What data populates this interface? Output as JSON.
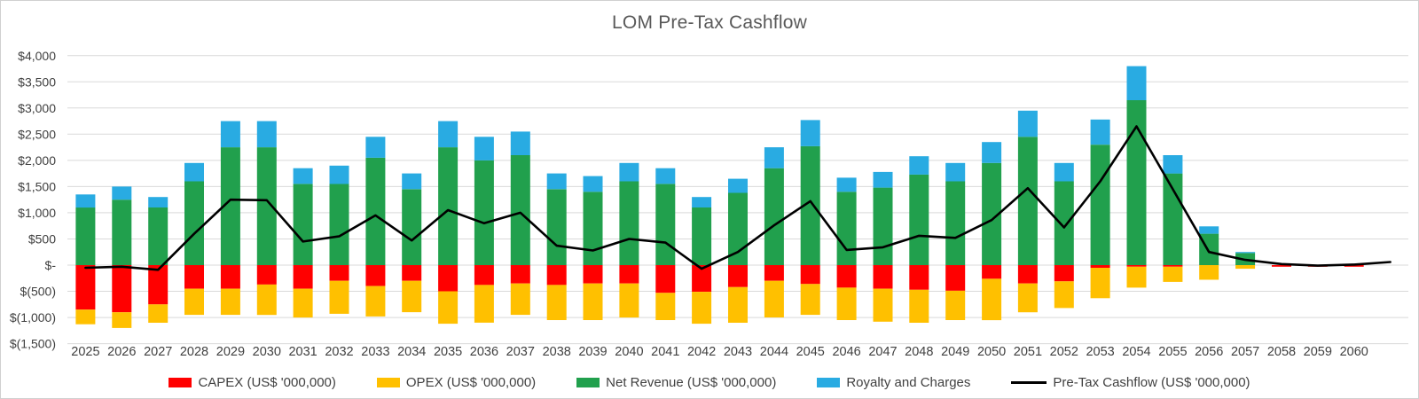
{
  "title": "LOM Pre-Tax Cashflow",
  "chart_data": {
    "type": "bar",
    "subtype": "stacked-bars-with-line-overlay",
    "title": "LOM Pre-Tax Cashflow",
    "xlabel": "",
    "ylabel": "",
    "grid": true,
    "legend_position": "bottom",
    "ylim": [
      -1500,
      4000
    ],
    "y_axis": {
      "min": -1500,
      "max": 4000,
      "step": 500,
      "tick_values": [
        4000,
        3500,
        3000,
        2500,
        2000,
        1500,
        1000,
        500,
        0,
        -500,
        -1000,
        -1500
      ],
      "tick_labels": [
        "$4,000",
        "$3,500",
        "$3,000",
        "$2,500",
        "$2,000",
        "$1,500",
        "$1,000",
        "$500",
        "$-",
        "$(500)",
        "$(1,000)",
        "$(1,500)"
      ]
    },
    "categories": [
      "2025",
      "2026",
      "2027",
      "2028",
      "2029",
      "2030",
      "2031",
      "2032",
      "2033",
      "2034",
      "2035",
      "2036",
      "2037",
      "2038",
      "2039",
      "2040",
      "2041",
      "2042",
      "2043",
      "2044",
      "2045",
      "2046",
      "2047",
      "2048",
      "2049",
      "2050",
      "2051",
      "2052",
      "2053",
      "2054",
      "2055",
      "2056",
      "2057",
      "2058",
      "2059",
      "2060"
    ],
    "series": [
      {
        "id": "capex",
        "name": "CAPEX (US$ '000,000)",
        "color": "#ff0000",
        "stack": "negative",
        "values": [
          -850,
          -900,
          -750,
          -450,
          -450,
          -370,
          -450,
          -300,
          -400,
          -300,
          -500,
          -380,
          -350,
          -380,
          -350,
          -350,
          -530,
          -510,
          -420,
          -300,
          -360,
          -430,
          -450,
          -470,
          -490,
          -260,
          -350,
          -310,
          -50,
          -30,
          -30,
          0,
          0,
          -30,
          -30,
          -30
        ]
      },
      {
        "id": "opex",
        "name": "OPEX (US$ '000,000)",
        "color": "#ffc000",
        "stack": "negative",
        "values": [
          -280,
          -300,
          -350,
          -500,
          -500,
          -580,
          -550,
          -630,
          -580,
          -600,
          -620,
          -720,
          -600,
          -670,
          -700,
          -650,
          -520,
          -610,
          -680,
          -700,
          -590,
          -620,
          -630,
          -630,
          -560,
          -790,
          -550,
          -510,
          -580,
          -400,
          -290,
          -280,
          -70,
          0,
          0,
          0
        ]
      },
      {
        "id": "net-revenue",
        "name": "Net Revenue (US$ '000,000)",
        "color": "#21a04d",
        "stack": "positive",
        "values": [
          1100,
          1250,
          1100,
          1600,
          2250,
          2250,
          1550,
          1550,
          2050,
          1450,
          2250,
          2000,
          2100,
          1450,
          1400,
          1600,
          1550,
          1100,
          1380,
          1850,
          2270,
          1400,
          1480,
          1730,
          1600,
          1950,
          2450,
          1600,
          2300,
          3150,
          1750,
          600,
          230,
          0,
          0,
          0
        ]
      },
      {
        "id": "royalty",
        "name": "Royalty and Charges",
        "color": "#29abe2",
        "stack": "positive",
        "values": [
          250,
          250,
          200,
          350,
          500,
          500,
          300,
          350,
          400,
          300,
          500,
          450,
          450,
          300,
          300,
          350,
          300,
          200,
          270,
          400,
          500,
          270,
          300,
          350,
          350,
          400,
          500,
          350,
          480,
          650,
          350,
          140,
          20,
          0,
          0,
          0
        ]
      }
    ],
    "line": {
      "id": "pretax",
      "name": "Pre-Tax Cashflow (US$ '000,000)",
      "color": "#000000",
      "values": [
        -50,
        -30,
        -90,
        600,
        1250,
        1240,
        450,
        550,
        950,
        470,
        1050,
        800,
        1000,
        370,
        280,
        500,
        430,
        -70,
        250,
        760,
        1220,
        290,
        340,
        560,
        520,
        860,
        1470,
        720,
        1600,
        2650,
        1450,
        250,
        100,
        20,
        -10,
        10
      ],
      "tail_value": 60
    },
    "colors": {
      "gridline": "#d9d9d9",
      "axis_text": "#404040",
      "title_text": "#595959",
      "background": "#ffffff"
    }
  }
}
